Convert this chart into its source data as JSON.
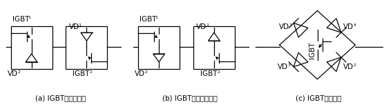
{
  "bg_color": "#ffffff",
  "fig_width": 5.56,
  "fig_height": 1.58,
  "dpi": 100,
  "captions": [
    "(a) IGBT共射极结构",
    "(b) IGBT共集电极结构",
    "(c) IGBT桥式结构"
  ],
  "lw": 0.9,
  "fs": 7.5
}
